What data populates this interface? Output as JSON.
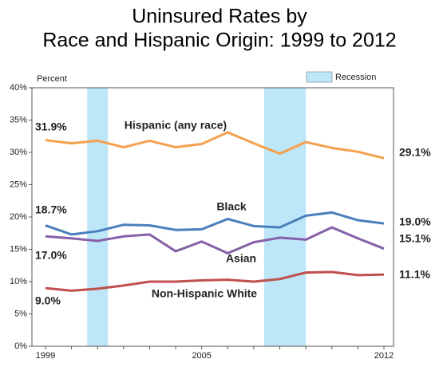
{
  "chart_data": {
    "type": "line",
    "title": [
      "Uninsured Rates by",
      "Race and Hispanic Origin: 1999 to 2012"
    ],
    "y_label": "Percent",
    "x": [
      1999,
      2000,
      2001,
      2002,
      2003,
      2004,
      2005,
      2006,
      2007,
      2008,
      2009,
      2010,
      2011,
      2012
    ],
    "xlim": [
      1999,
      2012
    ],
    "xticks": [
      1999,
      2005,
      2012
    ],
    "ylim": [
      0,
      40
    ],
    "yticks": [
      {
        "value": 0,
        "label": "0%"
      },
      {
        "value": 5,
        "label": "5%"
      },
      {
        "value": 10,
        "label": "10%"
      },
      {
        "value": 15,
        "label": "15%"
      },
      {
        "value": 20,
        "label": "20%"
      },
      {
        "value": 25,
        "label": "25%"
      },
      {
        "value": 30,
        "label": "30%"
      },
      {
        "value": 35,
        "label": "35%"
      },
      {
        "value": 40,
        "label": "40%"
      }
    ],
    "recession_label": "Recession",
    "recession_color": "#bde6f8",
    "recessions": [
      [
        2000.6,
        2001.4
      ],
      [
        2007.4,
        2009.0
      ]
    ],
    "series": [
      {
        "name": "Hispanic (any race)",
        "color": "#f4a04f",
        "values": [
          31.9,
          31.4,
          31.8,
          30.8,
          31.8,
          30.8,
          31.3,
          33.1,
          31.4,
          29.8,
          31.6,
          30.7,
          30.1,
          29.1
        ],
        "value_labels": [
          "31.9%",
          null,
          null,
          null,
          null,
          null,
          null,
          null,
          null,
          null,
          null,
          null,
          null,
          "29.1%"
        ]
      },
      {
        "name": "Black",
        "color": "#4a7ebb",
        "values": [
          18.7,
          17.3,
          17.8,
          18.8,
          18.7,
          18.0,
          18.1,
          19.7,
          18.6,
          18.4,
          20.2,
          20.7,
          19.5,
          19.0
        ],
        "value_labels": [
          "18.7%",
          null,
          null,
          null,
          null,
          null,
          null,
          null,
          null,
          null,
          null,
          null,
          null,
          "19.0%"
        ]
      },
      {
        "name": "Asian",
        "color": "#8560a8",
        "values": [
          17.0,
          16.7,
          16.3,
          17.0,
          17.3,
          14.7,
          16.2,
          14.4,
          16.1,
          16.8,
          16.5,
          18.4,
          16.7,
          15.1
        ],
        "value_labels": [
          "17.0%",
          null,
          null,
          null,
          null,
          null,
          null,
          null,
          null,
          null,
          null,
          null,
          null,
          "15.1%"
        ]
      },
      {
        "name": "Non-Hispanic White",
        "color": "#c0504d",
        "values": [
          9.0,
          8.6,
          8.9,
          9.4,
          10.0,
          10.0,
          10.2,
          10.3,
          10.0,
          10.4,
          11.4,
          11.5,
          11.0,
          11.1
        ],
        "value_labels": [
          "9.0%",
          null,
          null,
          null,
          null,
          null,
          null,
          null,
          null,
          null,
          null,
          null,
          null,
          "11.1%"
        ]
      }
    ]
  }
}
